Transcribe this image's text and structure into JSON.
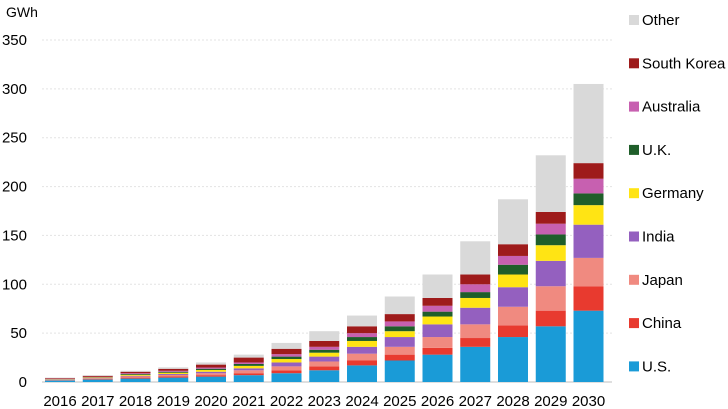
{
  "chart_data": {
    "type": "bar",
    "stacked": true,
    "unit_label": "GWh",
    "categories": [
      "2016",
      "2017",
      "2018",
      "2019",
      "2020",
      "2021",
      "2022",
      "2023",
      "2024",
      "2025",
      "2026",
      "2027",
      "2028",
      "2029",
      "2030"
    ],
    "ylim": [
      0,
      350
    ],
    "yticks": [
      0,
      50,
      100,
      150,
      200,
      250,
      300,
      350
    ],
    "grid": true,
    "legend_position": "right",
    "series": [
      {
        "name": "U.S.",
        "color": "#1a9bd7",
        "values": [
          1.5,
          2.5,
          3.5,
          4.5,
          5.5,
          7,
          9,
          12,
          17,
          22,
          28,
          36,
          46,
          57,
          73
        ]
      },
      {
        "name": "China",
        "color": "#e83a2f",
        "values": [
          0.3,
          0.5,
          1.0,
          1.2,
          1.5,
          2,
          3,
          4,
          5,
          6,
          7,
          9,
          12,
          16,
          25
        ]
      },
      {
        "name": "Japan",
        "color": "#f08a80",
        "values": [
          0.5,
          0.7,
          1.2,
          1.5,
          2,
          3,
          4,
          5,
          7,
          8,
          11,
          14,
          19,
          25,
          29
        ]
      },
      {
        "name": "India",
        "color": "#9460bf",
        "values": [
          0.2,
          0.3,
          0.7,
          1.0,
          1.5,
          2,
          4,
          5,
          7,
          10,
          13,
          17,
          20,
          26,
          34
        ]
      },
      {
        "name": "Germany",
        "color": "#ffe414",
        "values": [
          0.3,
          0.5,
          1.0,
          1.3,
          1.8,
          2.5,
          3.5,
          4,
          6,
          6,
          8,
          10,
          13,
          16,
          20
        ]
      },
      {
        "name": "U.K.",
        "color": "#1f5e2a",
        "values": [
          0.2,
          0.4,
          0.8,
          1.0,
          1.3,
          2,
          2.5,
          3,
          4,
          5,
          5,
          6,
          10,
          11,
          12
        ]
      },
      {
        "name": "Australia",
        "color": "#c760b0",
        "values": [
          0.3,
          0.4,
          0.8,
          1.0,
          1.2,
          1.5,
          2.5,
          3,
          4,
          5,
          6,
          8,
          9,
          11,
          15
        ]
      },
      {
        "name": "South Korea",
        "color": "#9e1b1b",
        "values": [
          0.7,
          1.0,
          1.5,
          2.0,
          3,
          5,
          5.5,
          6,
          7,
          7.5,
          8,
          10,
          12,
          12,
          16
        ]
      },
      {
        "name": "Other",
        "color": "#d9d9d9",
        "values": [
          0.5,
          0.7,
          1.0,
          1.5,
          2.2,
          3,
          6,
          10,
          11,
          18,
          24,
          34,
          46,
          58,
          81
        ]
      }
    ],
    "legend_order": [
      "Other",
      "South Korea",
      "Australia",
      "U.K.",
      "Germany",
      "India",
      "Japan",
      "China",
      "U.S."
    ]
  }
}
